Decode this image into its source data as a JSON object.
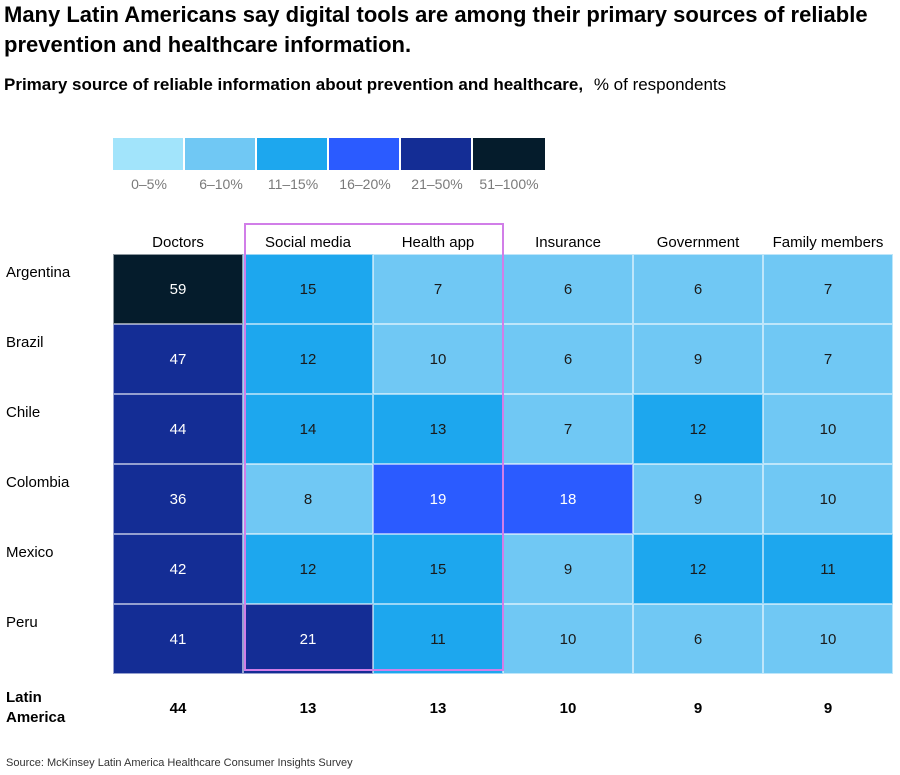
{
  "header": {
    "title": "Many Latin Americans say digital tools are among their primary sources of reliable prevention and healthcare information.",
    "subtitle": "Primary source of reliable information about prevention and healthcare,",
    "unit": "% of respondents"
  },
  "legend": {
    "items": [
      {
        "label": "0–5%",
        "color": "#a2e4fb"
      },
      {
        "label": "6–10%",
        "color": "#70c8f4"
      },
      {
        "label": "11–15%",
        "color": "#1da7ee"
      },
      {
        "label": "16–20%",
        "color": "#2b5bff"
      },
      {
        "label": "21–50%",
        "color": "#142d95"
      },
      {
        "label": "51–100%",
        "color": "#051c2c"
      }
    ]
  },
  "chart_data": {
    "type": "heatmap",
    "columns": [
      "Doctors",
      "Social media",
      "Health app",
      "Insurance",
      "Government",
      "Family members"
    ],
    "rows": [
      "Argentina",
      "Brazil",
      "Chile",
      "Colombia",
      "Mexico",
      "Peru"
    ],
    "values": [
      [
        59,
        15,
        7,
        6,
        6,
        7
      ],
      [
        47,
        12,
        10,
        6,
        9,
        7
      ],
      [
        44,
        14,
        13,
        7,
        12,
        10
      ],
      [
        36,
        8,
        19,
        18,
        9,
        10
      ],
      [
        42,
        12,
        15,
        9,
        12,
        11
      ],
      [
        41,
        21,
        11,
        10,
        6,
        10
      ]
    ],
    "highlighted_columns": [
      "Social media",
      "Health app"
    ],
    "total": {
      "label": "Latin America",
      "values": [
        44,
        13,
        13,
        10,
        9,
        9
      ]
    }
  },
  "footer": {
    "source": "Source: McKinsey Latin America Healthcare Consumer Insights Survey"
  }
}
